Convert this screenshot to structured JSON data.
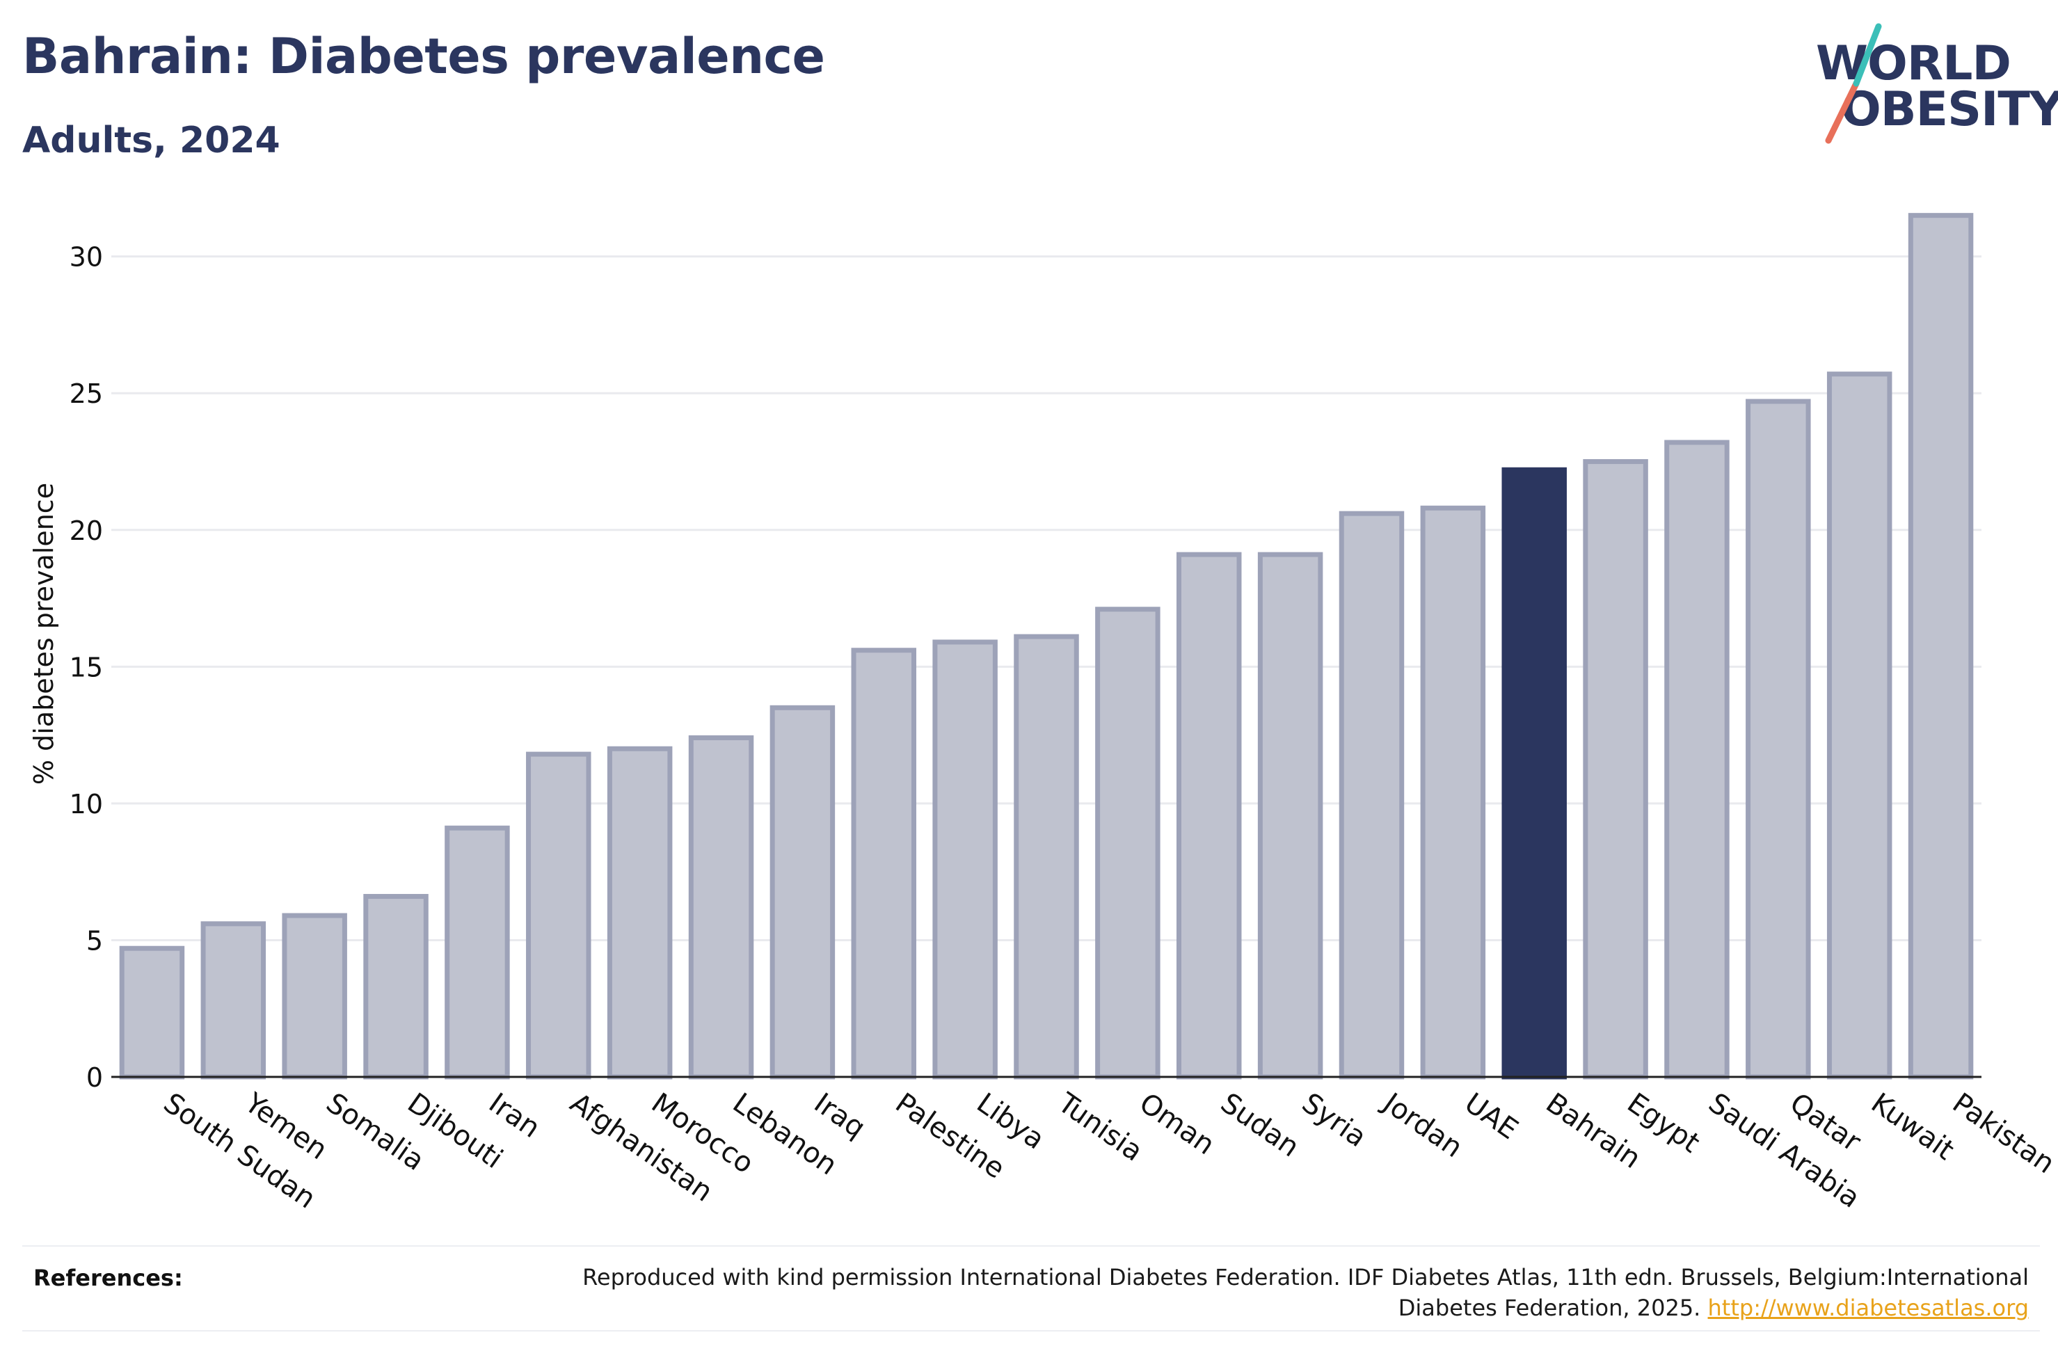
{
  "header": {
    "title": "Bahrain: Diabetes prevalence",
    "subtitle": "Adults, 2024"
  },
  "logo": {
    "line1": "WORLD",
    "line2": "OBESITY",
    "colors": {
      "text": "#2b365f",
      "slash_teal": "#3bbfb8",
      "slash_coral": "#e8705a"
    }
  },
  "chart_data": {
    "type": "bar",
    "title": "Bahrain: Diabetes prevalence",
    "subtitle": "Adults, 2024",
    "ylabel": "% diabetes prevalence",
    "xlabel": "",
    "ylim": [
      0,
      32
    ],
    "yticks": [
      0,
      5,
      10,
      15,
      20,
      25,
      30
    ],
    "grid": true,
    "highlight": "Bahrain",
    "colors": {
      "bar": "#bfc2cf",
      "bar_border": "#9da2b8",
      "highlight": "#2b365f",
      "grid": "#e9eaee"
    },
    "categories": [
      "South Sudan",
      "Yemen",
      "Somalia",
      "Djibouti",
      "Iran",
      "Afghanistan",
      "Morocco",
      "Lebanon",
      "Iraq",
      "Palestine",
      "Libya",
      "Tunisia",
      "Oman",
      "Sudan",
      "Syria",
      "Jordan",
      "UAE",
      "Bahrain",
      "Egypt",
      "Saudi Arabia",
      "Qatar",
      "Kuwait",
      "Pakistan"
    ],
    "values": [
      4.7,
      5.6,
      5.9,
      6.6,
      9.1,
      11.8,
      12.0,
      12.4,
      13.5,
      15.6,
      15.9,
      16.1,
      17.1,
      19.1,
      19.1,
      20.6,
      20.8,
      22.2,
      22.5,
      23.2,
      24.7,
      25.7,
      31.5
    ]
  },
  "references": {
    "label": "References:",
    "text": "Reproduced with kind permission International Diabetes Federation. IDF Diabetes Atlas, 11th edn. Brussels, Belgium:International Diabetes Federation, 2025.",
    "link": "http://www.diabetesatlas.org"
  }
}
